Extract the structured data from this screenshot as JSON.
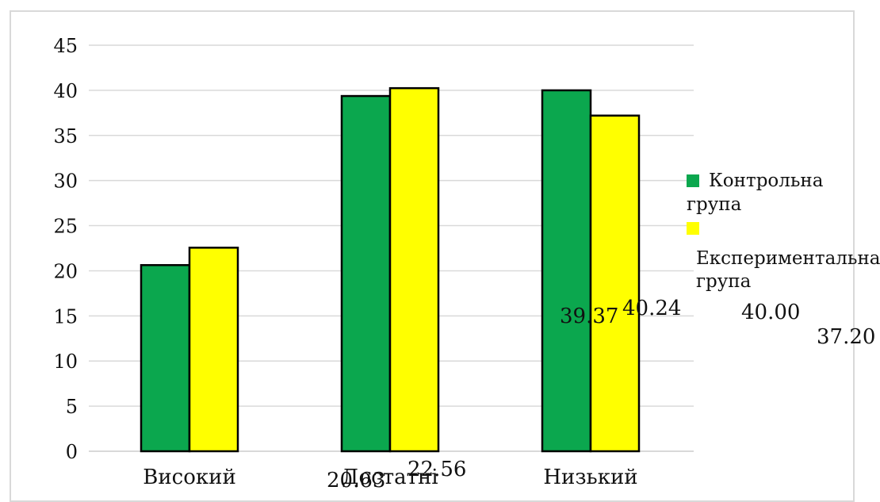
{
  "chart_data": {
    "type": "bar",
    "categories": [
      "Високий",
      "Достатній",
      "Низький"
    ],
    "category_labels_visible": [
      "Високий",
      "Достатні",
      "Низький"
    ],
    "series": [
      {
        "name": "Контрольна група",
        "values": [
          20.63,
          39.37,
          40.0
        ],
        "color": "#0ba74e"
      },
      {
        "name": "Експериментальна група",
        "values": [
          22.56,
          40.24,
          37.2
        ],
        "color": "#ffff00"
      }
    ],
    "ylim": [
      0,
      45
    ],
    "yticks": [
      0,
      5,
      10,
      15,
      20,
      25,
      30,
      35,
      40,
      45
    ],
    "grid": true,
    "legend_position": "right",
    "axis_color": "#d9d9d9",
    "bar_outline": "#000000",
    "data_labels": [
      "39.37",
      "40.24",
      "40.00",
      "37.20",
      "22.56",
      "20.63"
    ]
  }
}
